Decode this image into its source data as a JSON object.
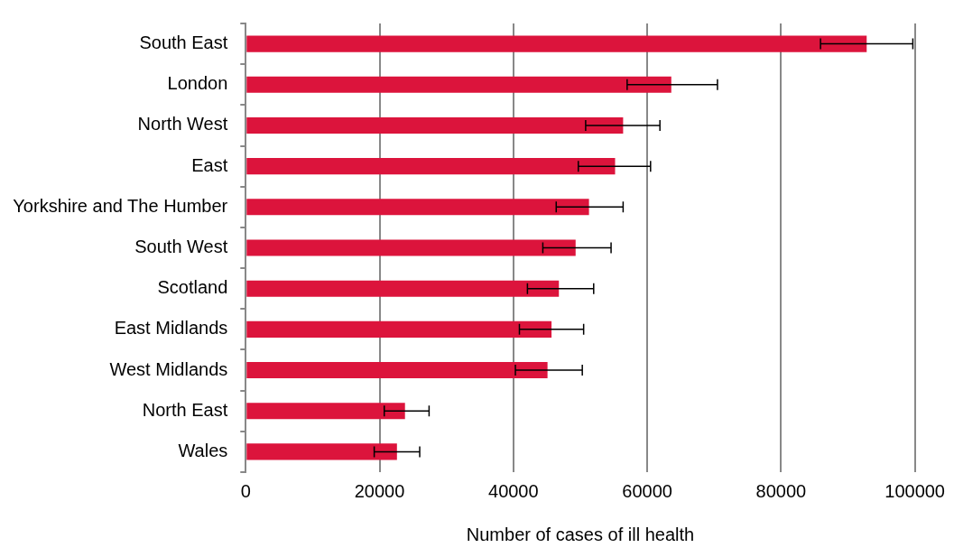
{
  "chart_data": {
    "type": "bar",
    "orientation": "horizontal",
    "xlabel": "Number of cases of ill health",
    "categories": [
      "South East",
      "London",
      "North West",
      "East",
      "Yorkshire and The Humber",
      "South West",
      "Scotland",
      "East Midlands",
      "West Midlands",
      "North East",
      "Wales"
    ],
    "values": [
      92800,
      63600,
      56400,
      55200,
      51300,
      49300,
      46800,
      45700,
      45100,
      23800,
      22600
    ],
    "errors": [
      [
        85900,
        99700
      ],
      [
        57000,
        70500
      ],
      [
        50800,
        61900
      ],
      [
        49700,
        60500
      ],
      [
        46400,
        56400
      ],
      [
        44400,
        54600
      ],
      [
        42100,
        52000
      ],
      [
        40900,
        50500
      ],
      [
        40300,
        50300
      ],
      [
        20700,
        27400
      ],
      [
        19200,
        26000
      ]
    ],
    "color": "#dc143c",
    "xlim": [
      0,
      100000
    ],
    "xticks": [
      0,
      20000,
      40000,
      60000,
      80000,
      100000
    ],
    "grid": "x",
    "legend": false
  }
}
